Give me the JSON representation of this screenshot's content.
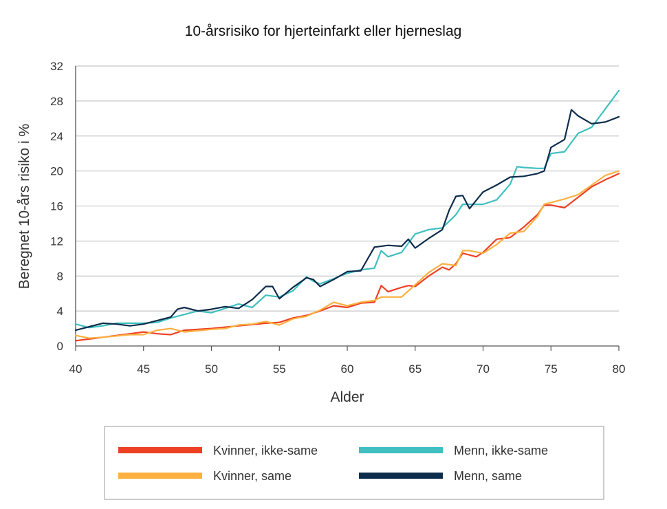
{
  "chart_data": {
    "type": "line",
    "title": "10-årsrisiko for hjerteinfarkt eller hjerneslag",
    "xlabel": "Alder",
    "ylabel": "Beregnet 10-års risiko i %",
    "xlim": [
      40,
      80
    ],
    "ylim": [
      0,
      32
    ],
    "x_ticks": [
      40,
      45,
      50,
      55,
      60,
      65,
      70,
      75,
      80
    ],
    "y_ticks": [
      0,
      4,
      8,
      12,
      16,
      20,
      24,
      28,
      32
    ],
    "grid": "horizontal",
    "legend_position": "bottom",
    "series": [
      {
        "name": "Kvinner, ikke-same",
        "color": "#EE4023",
        "points": [
          [
            40,
            0.6
          ],
          [
            42,
            1.0
          ],
          [
            44,
            1.4
          ],
          [
            45,
            1.6
          ],
          [
            46,
            1.4
          ],
          [
            47,
            1.3
          ],
          [
            48,
            1.8
          ],
          [
            50,
            2.0
          ],
          [
            52,
            2.3
          ],
          [
            54,
            2.6
          ],
          [
            55,
            2.7
          ],
          [
            56,
            3.2
          ],
          [
            57,
            3.5
          ],
          [
            58,
            4.0
          ],
          [
            59,
            4.6
          ],
          [
            60,
            4.4
          ],
          [
            61,
            4.9
          ],
          [
            62,
            5.0
          ],
          [
            62.5,
            6.9
          ],
          [
            63,
            6.2
          ],
          [
            64,
            6.7
          ],
          [
            64.5,
            6.9
          ],
          [
            65,
            6.8
          ],
          [
            66,
            8.0
          ],
          [
            67,
            9.0
          ],
          [
            67.5,
            8.7
          ],
          [
            68,
            9.4
          ],
          [
            68.5,
            10.6
          ],
          [
            69,
            10.4
          ],
          [
            69.5,
            10.2
          ],
          [
            70,
            10.7
          ],
          [
            71,
            12.2
          ],
          [
            72,
            12.4
          ],
          [
            73,
            13.6
          ],
          [
            74,
            15.0
          ],
          [
            74.5,
            16.1
          ],
          [
            75,
            16.1
          ],
          [
            76,
            15.8
          ],
          [
            77,
            17.0
          ],
          [
            78,
            18.2
          ],
          [
            79,
            19.0
          ],
          [
            80,
            19.7
          ]
        ]
      },
      {
        "name": "Kvinner, same",
        "color": "#FBB040",
        "points": [
          [
            40,
            1.2
          ],
          [
            41,
            0.9
          ],
          [
            42,
            1.0
          ],
          [
            44,
            1.3
          ],
          [
            45,
            1.3
          ],
          [
            46,
            1.8
          ],
          [
            47,
            2.0
          ],
          [
            48,
            1.6
          ],
          [
            50,
            1.9
          ],
          [
            51,
            2.0
          ],
          [
            52,
            2.4
          ],
          [
            53,
            2.5
          ],
          [
            54,
            2.8
          ],
          [
            55,
            2.4
          ],
          [
            56,
            3.1
          ],
          [
            57,
            3.4
          ],
          [
            58,
            4.1
          ],
          [
            59,
            5.0
          ],
          [
            60,
            4.6
          ],
          [
            61,
            5.0
          ],
          [
            62,
            5.2
          ],
          [
            62.5,
            5.6
          ],
          [
            63,
            5.6
          ],
          [
            64,
            5.6
          ],
          [
            65,
            7.0
          ],
          [
            66,
            8.4
          ],
          [
            67,
            9.4
          ],
          [
            68,
            9.2
          ],
          [
            68.5,
            10.9
          ],
          [
            69,
            10.9
          ],
          [
            70,
            10.6
          ],
          [
            71,
            11.6
          ],
          [
            72,
            12.9
          ],
          [
            73,
            13.1
          ],
          [
            74,
            14.8
          ],
          [
            74.5,
            16.2
          ],
          [
            75,
            16.4
          ],
          [
            76,
            16.8
          ],
          [
            77,
            17.3
          ],
          [
            78,
            18.4
          ],
          [
            79,
            19.5
          ],
          [
            80,
            20.0
          ]
        ]
      },
      {
        "name": "Menn, ikke-same",
        "color": "#3FBFBF",
        "points": [
          [
            40,
            2.5
          ],
          [
            41,
            2.1
          ],
          [
            42,
            2.3
          ],
          [
            43,
            2.6
          ],
          [
            44,
            2.6
          ],
          [
            45,
            2.6
          ],
          [
            46,
            2.7
          ],
          [
            47,
            3.2
          ],
          [
            48,
            3.6
          ],
          [
            49,
            4.0
          ],
          [
            50,
            3.8
          ],
          [
            51,
            4.3
          ],
          [
            52,
            4.8
          ],
          [
            53,
            4.4
          ],
          [
            54,
            5.8
          ],
          [
            55,
            5.6
          ],
          [
            56,
            6.3
          ],
          [
            57,
            7.9
          ],
          [
            57.5,
            7.4
          ],
          [
            58,
            7.1
          ],
          [
            59,
            7.7
          ],
          [
            60,
            8.3
          ],
          [
            61,
            8.7
          ],
          [
            62,
            8.9
          ],
          [
            62.5,
            10.9
          ],
          [
            63,
            10.2
          ],
          [
            64,
            10.7
          ],
          [
            65,
            12.8
          ],
          [
            66,
            13.3
          ],
          [
            67,
            13.5
          ],
          [
            68,
            15.0
          ],
          [
            68.5,
            16.2
          ],
          [
            69,
            16.2
          ],
          [
            70,
            16.2
          ],
          [
            71,
            16.7
          ],
          [
            72,
            18.5
          ],
          [
            72.5,
            20.5
          ],
          [
            73,
            20.4
          ],
          [
            74,
            20.3
          ],
          [
            74.5,
            20.3
          ],
          [
            75,
            22.0
          ],
          [
            76,
            22.2
          ],
          [
            77,
            24.3
          ],
          [
            78,
            25.0
          ],
          [
            79,
            27.1
          ],
          [
            80,
            29.2
          ]
        ]
      },
      {
        "name": "Menn, same",
        "color": "#0D2C4C",
        "points": [
          [
            40,
            1.8
          ],
          [
            41,
            2.2
          ],
          [
            42,
            2.6
          ],
          [
            43,
            2.5
          ],
          [
            44,
            2.3
          ],
          [
            45,
            2.5
          ],
          [
            46,
            2.9
          ],
          [
            47,
            3.3
          ],
          [
            47.5,
            4.2
          ],
          [
            48,
            4.4
          ],
          [
            49,
            4.0
          ],
          [
            50,
            4.2
          ],
          [
            51,
            4.5
          ],
          [
            52,
            4.3
          ],
          [
            53,
            5.3
          ],
          [
            54,
            6.8
          ],
          [
            54.5,
            6.8
          ],
          [
            55,
            5.4
          ],
          [
            56,
            6.7
          ],
          [
            57,
            7.8
          ],
          [
            57.5,
            7.6
          ],
          [
            58,
            6.8
          ],
          [
            59,
            7.6
          ],
          [
            60,
            8.5
          ],
          [
            61,
            8.6
          ],
          [
            62,
            11.3
          ],
          [
            63,
            11.5
          ],
          [
            64,
            11.4
          ],
          [
            64.5,
            12.2
          ],
          [
            65,
            11.2
          ],
          [
            66,
            12.3
          ],
          [
            67,
            13.3
          ],
          [
            67.5,
            15.5
          ],
          [
            68,
            17.1
          ],
          [
            68.5,
            17.2
          ],
          [
            69,
            15.7
          ],
          [
            70,
            17.6
          ],
          [
            71,
            18.4
          ],
          [
            72,
            19.3
          ],
          [
            73,
            19.4
          ],
          [
            74,
            19.7
          ],
          [
            74.5,
            20.0
          ],
          [
            75,
            22.7
          ],
          [
            76,
            23.6
          ],
          [
            76.5,
            27.0
          ],
          [
            77,
            26.3
          ],
          [
            78,
            25.4
          ],
          [
            79,
            25.6
          ],
          [
            80,
            26.2
          ]
        ]
      }
    ]
  }
}
